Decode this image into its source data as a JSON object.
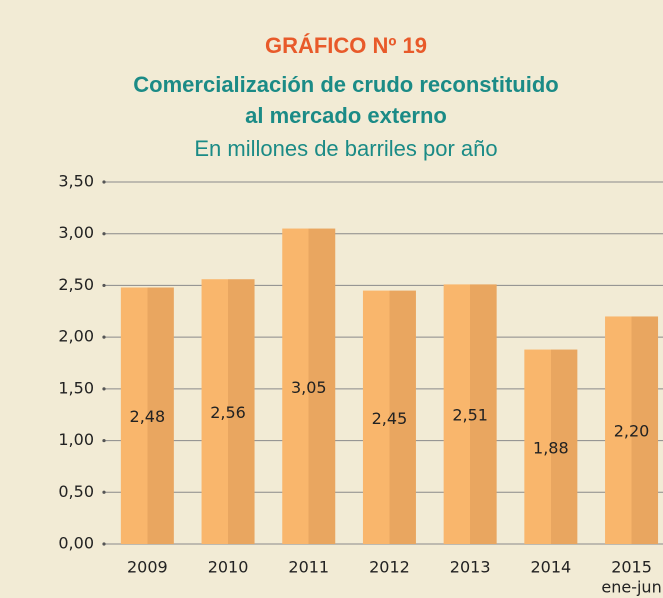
{
  "chart_data": {
    "type": "bar",
    "label": "GRÁFICO Nº 19",
    "title": [
      "Comercialización de crudo reconstituido",
      "al mercado externo"
    ],
    "subtitle": "En millones de barriles por año",
    "categories": [
      "2009",
      "2010",
      "2011",
      "2012",
      "2013",
      "2014",
      "2015"
    ],
    "annotation": "ene-jun",
    "values": [
      2.48,
      2.56,
      3.05,
      2.45,
      2.51,
      1.88,
      2.2
    ],
    "value_labels": [
      "2,48",
      "2,56",
      "3,05",
      "2,45",
      "2,51",
      "1,88",
      "2,20"
    ],
    "color": [
      "#f9b66c",
      "#e9a660"
    ],
    "ylim": [
      0,
      3.5
    ],
    "yticks": [
      {
        "value": 0,
        "label": "0,00"
      },
      {
        "value": 0.5,
        "label": "0,50"
      },
      {
        "value": 1,
        "label": "1,00"
      },
      {
        "value": 1.5,
        "label": "1,50"
      },
      {
        "value": 2,
        "label": "2,00"
      },
      {
        "value": 2.5,
        "label": "2,50"
      },
      {
        "value": 3,
        "label": "3,00"
      },
      {
        "value": 3.5,
        "label": "3,50"
      }
    ],
    "grid": true
  }
}
